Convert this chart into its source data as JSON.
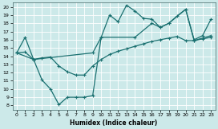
{
  "xlabel": "Humidex (Indice chaleur)",
  "bg_color": "#cce9e9",
  "grid_color": "#aacccc",
  "line_color": "#1a7070",
  "xlim": [
    -0.5,
    23.5
  ],
  "ylim": [
    7.5,
    20.5
  ],
  "xticks": [
    0,
    1,
    2,
    3,
    4,
    5,
    6,
    7,
    8,
    9,
    10,
    11,
    12,
    13,
    14,
    15,
    16,
    17,
    18,
    19,
    20,
    21,
    22,
    23
  ],
  "yticks": [
    8,
    9,
    10,
    11,
    12,
    13,
    14,
    15,
    16,
    17,
    18,
    19,
    20
  ],
  "series1_x": [
    0,
    1,
    2,
    3,
    4,
    5,
    6,
    7,
    8,
    9,
    10,
    11,
    12,
    13,
    14,
    15,
    16,
    17,
    18,
    19,
    20,
    21,
    22,
    23
  ],
  "series1_y": [
    14.4,
    16.3,
    13.6,
    11.1,
    10.0,
    8.1,
    9.0,
    9.0,
    9.0,
    9.2,
    16.3,
    19.0,
    18.2,
    20.2,
    19.5,
    18.6,
    18.5,
    17.5,
    18.0,
    18.9,
    19.7,
    16.0,
    16.5,
    18.5
  ],
  "series2_x": [
    0,
    2,
    9,
    10,
    14,
    16,
    17,
    18,
    20,
    21,
    23
  ],
  "series2_y": [
    14.4,
    13.6,
    14.4,
    16.3,
    16.3,
    18.0,
    17.5,
    18.0,
    19.7,
    15.9,
    16.5
  ],
  "series3_x": [
    0,
    1,
    2,
    3,
    4,
    5,
    6,
    7,
    8,
    9,
    10,
    11,
    12,
    13,
    14,
    15,
    16,
    17,
    18,
    19,
    20,
    21,
    22,
    23
  ],
  "series3_y": [
    14.4,
    14.5,
    13.6,
    13.8,
    13.9,
    12.8,
    12.1,
    11.7,
    11.7,
    12.8,
    13.6,
    14.2,
    14.6,
    14.9,
    15.2,
    15.5,
    15.8,
    16.0,
    16.2,
    16.4,
    15.9,
    15.9,
    16.1,
    16.3
  ]
}
